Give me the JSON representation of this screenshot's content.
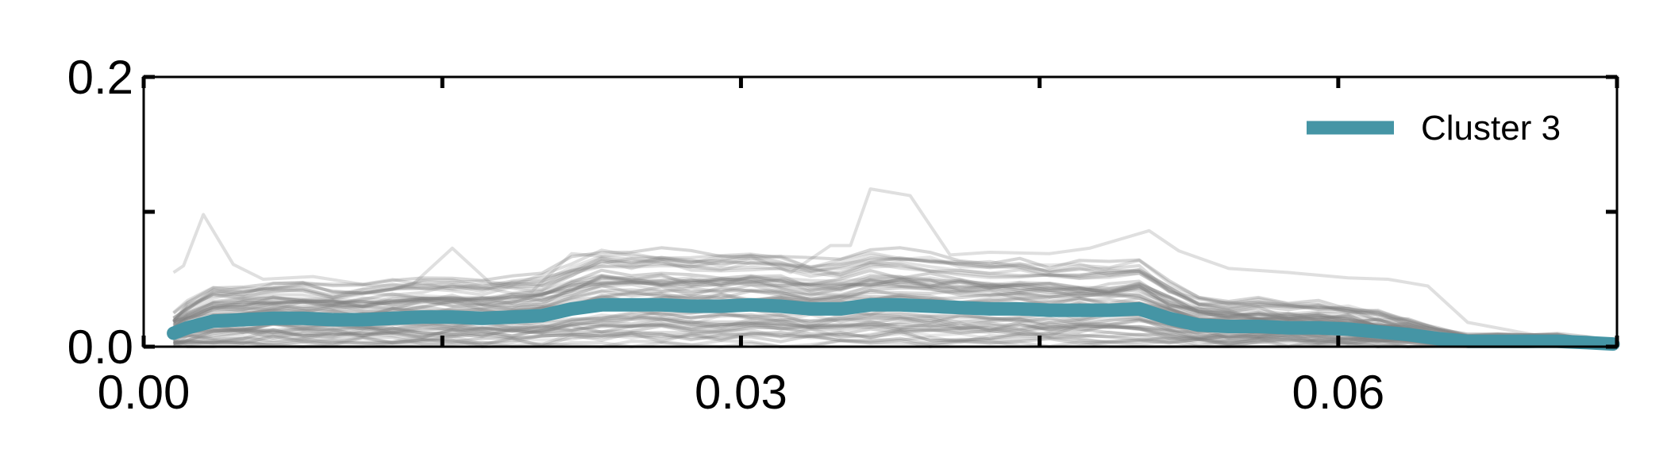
{
  "chart_data": {
    "type": "line",
    "xlim": [
      0.0,
      0.074
    ],
    "ylim": [
      0.0,
      0.2
    ],
    "x_ticks": [
      {
        "value": 0.0,
        "label": "0.00"
      },
      {
        "value": 0.015,
        "label": ""
      },
      {
        "value": 0.03,
        "label": "0.03"
      },
      {
        "value": 0.045,
        "label": ""
      },
      {
        "value": 0.06,
        "label": "0.06"
      },
      {
        "value": 0.074,
        "label": ""
      }
    ],
    "y_ticks": [
      {
        "value": 0.0,
        "label": "0.0"
      },
      {
        "value": 0.1,
        "label": ""
      },
      {
        "value": 0.2,
        "label": "0.2"
      }
    ],
    "grid": false,
    "legend": {
      "position": "top-right"
    },
    "mean_series": {
      "name": "Cluster 3",
      "color": "#4595a5",
      "x": [
        0.0015,
        0.0022,
        0.0035,
        0.005,
        0.0065,
        0.008,
        0.0095,
        0.011,
        0.0125,
        0.014,
        0.0155,
        0.017,
        0.0185,
        0.02,
        0.0215,
        0.023,
        0.0245,
        0.026,
        0.0275,
        0.029,
        0.0305,
        0.032,
        0.0335,
        0.035,
        0.0365,
        0.038,
        0.0395,
        0.041,
        0.0425,
        0.044,
        0.0455,
        0.047,
        0.0485,
        0.05,
        0.0515,
        0.053,
        0.0545,
        0.056,
        0.0575,
        0.059,
        0.0605,
        0.062,
        0.0635,
        0.065,
        0.0665,
        0.068,
        0.0695,
        0.071,
        0.0725,
        0.0738
      ],
      "y": [
        0.01,
        0.014,
        0.019,
        0.02,
        0.021,
        0.021,
        0.02,
        0.02,
        0.021,
        0.022,
        0.022,
        0.021,
        0.022,
        0.023,
        0.028,
        0.031,
        0.031,
        0.031,
        0.03,
        0.03,
        0.031,
        0.03,
        0.028,
        0.028,
        0.031,
        0.031,
        0.03,
        0.029,
        0.028,
        0.028,
        0.027,
        0.027,
        0.027,
        0.028,
        0.021,
        0.016,
        0.015,
        0.015,
        0.014,
        0.014,
        0.013,
        0.011,
        0.009,
        0.006,
        0.004,
        0.004,
        0.004,
        0.004,
        0.003,
        0.002
      ]
    },
    "member_series": {
      "color": "#808080",
      "seed": 7,
      "count": 60,
      "scale": [
        0.05,
        2.35
      ],
      "noise": 0.007,
      "spike_series": {
        "x": [
          0.0015,
          0.002,
          0.003,
          0.0045,
          0.006,
          0.0085,
          0.0115,
          0.0135,
          0.0155,
          0.0175,
          0.0195,
          0.0215,
          0.0245,
          0.0275,
          0.0305,
          0.0325,
          0.0345,
          0.0355,
          0.0365,
          0.0385,
          0.0405,
          0.0425,
          0.0455,
          0.0475,
          0.0505,
          0.052,
          0.0545,
          0.0575,
          0.0605,
          0.0625,
          0.0645,
          0.0665,
          0.0705,
          0.0738
        ],
        "y": [
          0.055,
          0.06,
          0.098,
          0.061,
          0.05,
          0.052,
          0.045,
          0.046,
          0.073,
          0.046,
          0.041,
          0.069,
          0.065,
          0.059,
          0.067,
          0.055,
          0.075,
          0.075,
          0.117,
          0.112,
          0.068,
          0.07,
          0.069,
          0.073,
          0.086,
          0.071,
          0.058,
          0.055,
          0.051,
          0.05,
          0.045,
          0.018,
          0.007,
          0.002
        ]
      }
    }
  }
}
